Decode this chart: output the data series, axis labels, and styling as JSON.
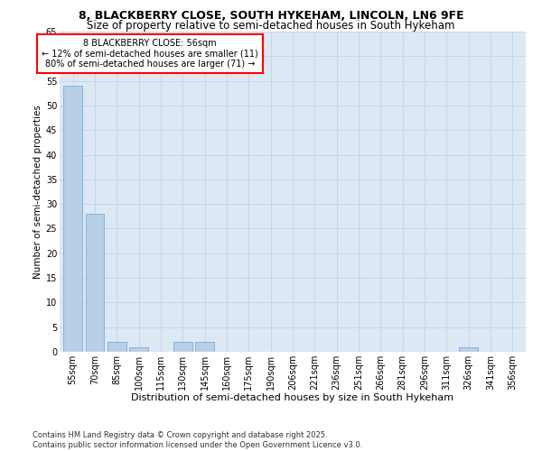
{
  "title1": "8, BLACKBERRY CLOSE, SOUTH HYKEHAM, LINCOLN, LN6 9FE",
  "title2": "Size of property relative to semi-detached houses in South Hykeham",
  "xlabel": "Distribution of semi-detached houses by size in South Hykeham",
  "ylabel": "Number of semi-detached properties",
  "categories": [
    "55sqm",
    "70sqm",
    "85sqm",
    "100sqm",
    "115sqm",
    "130sqm",
    "145sqm",
    "160sqm",
    "175sqm",
    "190sqm",
    "206sqm",
    "221sqm",
    "236sqm",
    "251sqm",
    "266sqm",
    "281sqm",
    "296sqm",
    "311sqm",
    "326sqm",
    "341sqm",
    "356sqm"
  ],
  "values": [
    54,
    28,
    2,
    1,
    0,
    2,
    2,
    0,
    0,
    0,
    0,
    0,
    0,
    0,
    0,
    0,
    0,
    0,
    1,
    0,
    0
  ],
  "bar_color": "#b8cfe8",
  "bar_edge_color": "#7aaed6",
  "annotation_box_text": "8 BLACKBERRY CLOSE: 56sqm\n← 12% of semi-detached houses are smaller (11)\n80% of semi-detached houses are larger (71) →",
  "ylim": [
    0,
    65
  ],
  "yticks": [
    0,
    5,
    10,
    15,
    20,
    25,
    30,
    35,
    40,
    45,
    50,
    55,
    60,
    65
  ],
  "grid_color": "#c8d4e8",
  "background_color": "#dde8f5",
  "footer": "Contains HM Land Registry data © Crown copyright and database right 2025.\nContains public sector information licensed under the Open Government Licence v3.0.",
  "title1_fontsize": 9,
  "title2_fontsize": 8.5,
  "xlabel_fontsize": 8,
  "ylabel_fontsize": 7.5,
  "tick_fontsize": 7,
  "annotation_fontsize": 7,
  "footer_fontsize": 6
}
